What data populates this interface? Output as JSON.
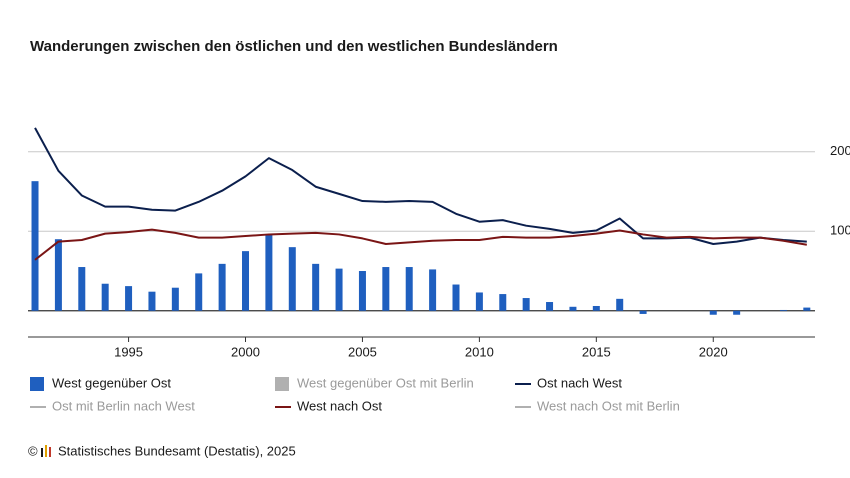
{
  "chart_data": {
    "type": "combo",
    "title": "Wanderungen zwischen den östlichen und den westlichen Bundesländern",
    "x": [
      1991,
      1992,
      1993,
      1994,
      1995,
      1996,
      1997,
      1998,
      1999,
      2000,
      2001,
      2002,
      2003,
      2004,
      2005,
      2006,
      2007,
      2008,
      2009,
      2010,
      2011,
      2012,
      2013,
      2014,
      2015,
      2016,
      2017,
      2018,
      2019,
      2020,
      2021,
      2022,
      2023,
      2024
    ],
    "xlim": [
      1990.7,
      2024.35
    ],
    "xticks": [
      1995,
      2000,
      2005,
      2010,
      2015,
      2020
    ],
    "ylim": [
      -33,
      250
    ],
    "yticks": [
      100,
      200
    ],
    "grid": true,
    "series": [
      {
        "name": "West gegenüber Ost",
        "type": "bar",
        "color": "#1f5fbf",
        "values": [
          163,
          90,
          55,
          34,
          31,
          24,
          29,
          47,
          59,
          75,
          96,
          80,
          59,
          53,
          50,
          55,
          55,
          52,
          33,
          23,
          21,
          16,
          11,
          5,
          6,
          15,
          -4,
          0,
          0,
          -5,
          -5,
          0,
          1,
          4
        ]
      },
      {
        "name": "West gegenüber Ost mit Berlin",
        "type": "bar",
        "color": "#b0b0b0",
        "hidden": true
      },
      {
        "name": "Ost nach West",
        "type": "line",
        "color": "#0b1f4d",
        "values": [
          230,
          176,
          145,
          131,
          131,
          127,
          126,
          137,
          151,
          169,
          192,
          177,
          156,
          147,
          138,
          137,
          138,
          137,
          122,
          112,
          114,
          107,
          103,
          98,
          101,
          116,
          91,
          91,
          92,
          84,
          87,
          92,
          89,
          87
        ]
      },
      {
        "name": "Ost mit Berlin nach West",
        "type": "line",
        "color": "#b0b0b0",
        "hidden": true
      },
      {
        "name": "West nach Ost",
        "type": "line",
        "color": "#7a1515",
        "values": [
          64,
          87,
          89,
          97,
          99,
          102,
          98,
          92,
          92,
          94,
          96,
          97,
          98,
          96,
          91,
          84,
          86,
          88,
          89,
          89,
          93,
          92,
          92,
          94,
          97,
          101,
          96,
          92,
          93,
          91,
          92,
          92,
          88,
          83
        ]
      },
      {
        "name": "West nach Ost mit Berlin",
        "type": "line",
        "color": "#b0b0b0",
        "hidden": true
      }
    ],
    "source_prefix": "©",
    "source": "Statistisches Bundesamt (Destatis), 2025"
  }
}
